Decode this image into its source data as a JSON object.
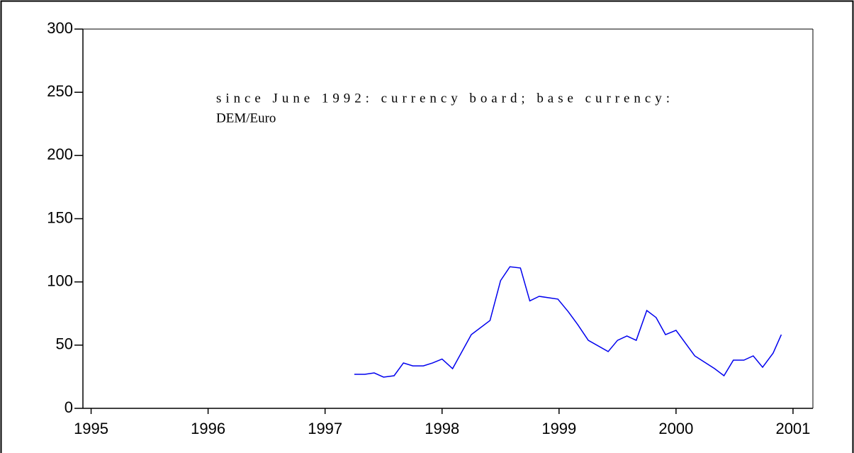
{
  "chart_data": {
    "type": "line",
    "annotation": [
      "since June 1992: currency board; base currency:",
      "DEM/Euro"
    ],
    "series": [
      {
        "color": "#0000ee",
        "x": [
          1997.25,
          1997.34,
          1997.42,
          1997.5,
          1997.59,
          1997.67,
          1997.75,
          1997.84,
          1997.92,
          1998.0,
          1998.09,
          1998.25,
          1998.41,
          1998.5,
          1998.58,
          1998.67,
          1998.75,
          1998.83,
          1998.99,
          1999.08,
          1999.16,
          1999.25,
          1999.42,
          1999.5,
          1999.58,
          1999.66,
          1999.75,
          1999.83,
          1999.91,
          2000.0,
          2000.16,
          2000.33,
          2000.41,
          2000.49,
          2000.58,
          2000.66,
          2000.74,
          2000.83,
          2000.9
        ],
        "values": [
          26.9,
          26.9,
          28,
          24.7,
          25.8,
          35.9,
          33.6,
          33.6,
          35.9,
          39,
          31.4,
          58.3,
          69.5,
          101,
          112,
          111,
          85,
          88.6,
          86.4,
          76.3,
          66.2,
          53.8,
          44.9,
          53.8,
          57.2,
          53.8,
          77.4,
          71.8,
          58.3,
          61.7,
          41.5,
          31.4,
          25.8,
          38.1,
          38.1,
          41.5,
          32.5,
          43.7,
          58.3
        ]
      }
    ],
    "xlim": [
      1994.93,
      2001.17
    ],
    "xticks": [
      1995,
      1996,
      1997,
      1998,
      1999,
      2000,
      2001
    ],
    "ylim": [
      0,
      300
    ],
    "yticks": [
      0,
      50,
      100,
      150,
      200,
      250,
      300
    ]
  }
}
